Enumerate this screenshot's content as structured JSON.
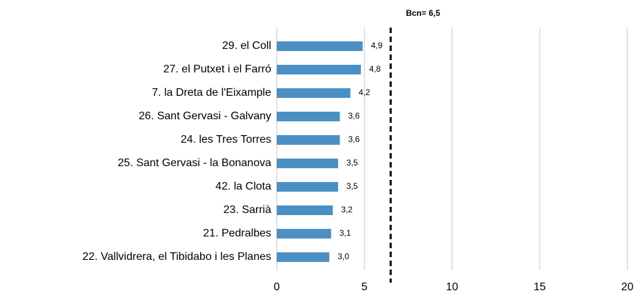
{
  "chart_data": {
    "type": "barh",
    "categories": [
      "29. el Coll",
      "27. el Putxet i el Farró",
      "7. la Dreta de l'Eixample",
      "26. Sant Gervasi - Galvany",
      "24. les Tres Torres",
      "25. Sant Gervasi - la Bonanova",
      "42. la Clota",
      "23. Sarrià",
      "21. Pedralbes",
      "22. Vallvidrera, el Tibidabo i les Planes"
    ],
    "values": [
      4.9,
      4.8,
      4.2,
      3.6,
      3.6,
      3.5,
      3.5,
      3.2,
      3.1,
      3.0
    ],
    "value_labels": [
      "4,9",
      "4,8",
      "4,2",
      "3,6",
      "3,6",
      "3,5",
      "3,5",
      "3,2",
      "3,1",
      "3,0"
    ],
    "color": "#4a90c4",
    "xlim": [
      0,
      20
    ],
    "xticks": [
      0,
      5,
      10,
      15,
      20
    ],
    "grid": true,
    "reference_line": {
      "value": 6.5,
      "label": "Bcn= 6,5"
    }
  }
}
